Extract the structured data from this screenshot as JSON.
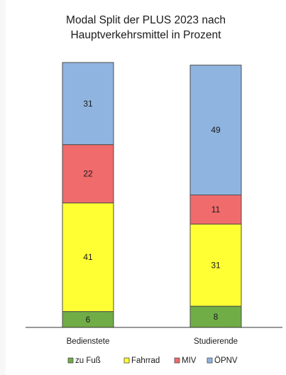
{
  "chart_data": {
    "type": "bar",
    "stacked": true,
    "title": [
      "Modal Split der PLUS 2023 nach",
      "Hauptverkehrsmittel in Prozent"
    ],
    "categories": [
      "Bedienstete",
      "Studierende"
    ],
    "series": [
      {
        "name": "zu Fuß",
        "color": "#70ad47",
        "values": [
          6,
          8
        ]
      },
      {
        "name": "Fahrrad",
        "color": "#ffff33",
        "values": [
          41,
          31
        ]
      },
      {
        "name": "MIV",
        "color": "#f06b6b",
        "values": [
          22,
          11
        ]
      },
      {
        "name": "ÖPNV",
        "color": "#8fb4e0",
        "values": [
          31,
          49
        ]
      }
    ],
    "ylim": [
      0,
      100
    ],
    "grid": false,
    "legend_position": "bottom",
    "data_labels": true
  }
}
